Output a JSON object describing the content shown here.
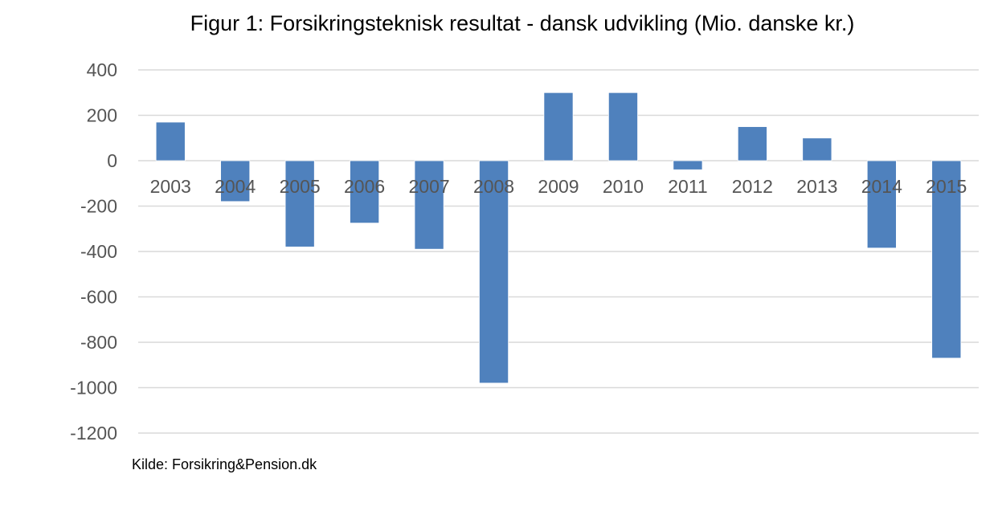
{
  "chart_data": {
    "type": "bar",
    "title": "Figur 1: Forsikringsteknisk resultat - dansk udvikling (Mio. danske kr.)",
    "xlabel": "",
    "ylabel": "",
    "categories": [
      "2003",
      "2004",
      "2005",
      "2006",
      "2007",
      "2008",
      "2009",
      "2010",
      "2011",
      "2012",
      "2013",
      "2014",
      "2015"
    ],
    "values": [
      170,
      -180,
      -380,
      -275,
      -390,
      -980,
      300,
      300,
      -40,
      150,
      100,
      -385,
      -870
    ],
    "ylim": [
      -1200,
      400
    ],
    "yticks": [
      400,
      200,
      0,
      -200,
      -400,
      -600,
      -800,
      -1000,
      -1200
    ],
    "grid": true,
    "legend": "none",
    "bar_color": "#4F81BD",
    "grid_color": "#D9D9D9"
  },
  "source": "Kilde: Forsikring&Pension.dk"
}
